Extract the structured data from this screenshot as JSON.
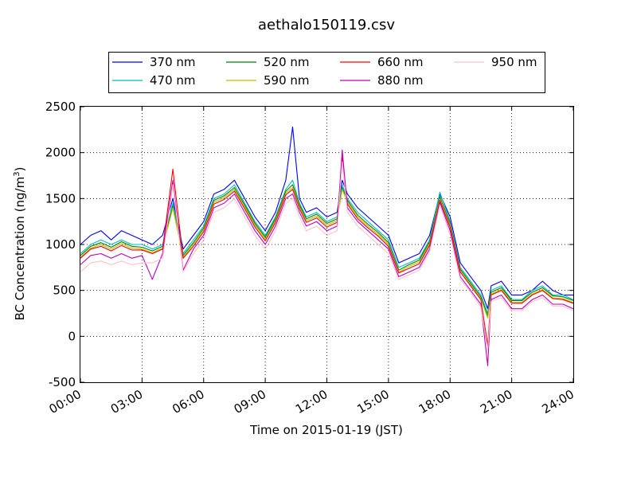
{
  "chart_data": {
    "type": "line",
    "title": "aethalo150119.csv",
    "xlabel": "Time on 2015-01-19 (JST)",
    "ylabel": "BC Concentration (ng/m",
    "ylabel_sup": "3",
    "ylabel_close": ")",
    "xlim": [
      "00:00",
      "24:00"
    ],
    "ylim": [
      -500,
      2500
    ],
    "grid": true,
    "legend_position": "top-center",
    "x_ticks": [
      "00:00",
      "03:00",
      "06:00",
      "09:00",
      "12:00",
      "15:00",
      "18:00",
      "21:00",
      "24:00"
    ],
    "y_ticks": [
      -500,
      0,
      500,
      1000,
      1500,
      2000,
      2500
    ],
    "x": [
      "00:00",
      "00:30",
      "01:00",
      "01:30",
      "02:00",
      "02:30",
      "03:00",
      "03:30",
      "04:00",
      "04:30",
      "05:00",
      "05:30",
      "06:00",
      "06:30",
      "07:00",
      "07:30",
      "08:00",
      "08:30",
      "09:00",
      "09:30",
      "10:00",
      "10:20",
      "10:40",
      "11:00",
      "11:30",
      "12:00",
      "12:30",
      "12:45",
      "13:00",
      "13:30",
      "14:00",
      "14:30",
      "15:00",
      "15:30",
      "16:00",
      "16:30",
      "17:00",
      "17:30",
      "18:00",
      "18:30",
      "19:00",
      "19:30",
      "19:50",
      "20:00",
      "20:30",
      "21:00",
      "21:30",
      "22:00",
      "22:30",
      "23:00",
      "23:30",
      "24:00"
    ],
    "series": [
      {
        "name": "370 nm",
        "color": "#0000ff",
        "values": [
          1000,
          1100,
          1150,
          1050,
          1150,
          1100,
          1050,
          1000,
          1100,
          1500,
          950,
          1100,
          1250,
          1550,
          1600,
          1700,
          1500,
          1300,
          1150,
          1350,
          1700,
          2280,
          1500,
          1350,
          1400,
          1300,
          1350,
          1700,
          1550,
          1400,
          1300,
          1200,
          1100,
          800,
          850,
          900,
          1100,
          1550,
          1300,
          800,
          650,
          500,
          300,
          550,
          600,
          450,
          450,
          500,
          600,
          500,
          450,
          450
        ]
      },
      {
        "name": "470 nm",
        "color": "#00bfbf",
        "values": [
          900,
          1000,
          1050,
          1000,
          1050,
          1000,
          1000,
          950,
          1000,
          1450,
          900,
          1050,
          1200,
          1500,
          1550,
          1650,
          1450,
          1250,
          1100,
          1300,
          1600,
          1700,
          1450,
          1300,
          1350,
          1250,
          1300,
          1650,
          1500,
          1350,
          1250,
          1150,
          1050,
          750,
          800,
          850,
          1050,
          1570,
          1250,
          750,
          600,
          450,
          250,
          500,
          550,
          400,
          400,
          500,
          550,
          450,
          450,
          400
        ]
      },
      {
        "name": "520 nm",
        "color": "#008000",
        "values": [
          880,
          980,
          1020,
          970,
          1030,
          980,
          970,
          930,
          980,
          1420,
          880,
          1020,
          1180,
          1480,
          1530,
          1620,
          1430,
          1230,
          1080,
          1280,
          1580,
          1650,
          1430,
          1280,
          1330,
          1230,
          1280,
          1620,
          1480,
          1320,
          1220,
          1130,
          1020,
          720,
          780,
          830,
          1030,
          1520,
          1230,
          730,
          580,
          430,
          220,
          480,
          530,
          390,
          390,
          480,
          530,
          440,
          430,
          390
        ]
      },
      {
        "name": "590 nm",
        "color": "#bfbf00",
        "values": [
          860,
          960,
          1000,
          950,
          1010,
          960,
          950,
          910,
          960,
          1400,
          860,
          1000,
          1160,
          1460,
          1510,
          1600,
          1410,
          1210,
          1060,
          1260,
          1560,
          1620,
          1410,
          1260,
          1310,
          1210,
          1260,
          1600,
          1460,
          1300,
          1200,
          1110,
          1000,
          700,
          760,
          810,
          1010,
          1500,
          1210,
          710,
          560,
          410,
          200,
          460,
          510,
          370,
          370,
          460,
          510,
          420,
          410,
          370
        ]
      },
      {
        "name": "660 nm",
        "color": "#ff0000",
        "values": [
          850,
          950,
          980,
          930,
          990,
          940,
          940,
          900,
          950,
          1820,
          850,
          980,
          1140,
          1440,
          1490,
          1580,
          1390,
          1190,
          1040,
          1240,
          1540,
          1600,
          1390,
          1240,
          1290,
          1190,
          1240,
          1950,
          1440,
          1280,
          1180,
          1090,
          980,
          690,
          740,
          790,
          990,
          1480,
          1190,
          700,
          550,
          400,
          -100,
          450,
          500,
          360,
          360,
          450,
          500,
          410,
          400,
          360
        ]
      },
      {
        "name": "880 nm",
        "color": "#bf00bf",
        "values": [
          780,
          880,
          900,
          850,
          900,
          850,
          880,
          620,
          900,
          1700,
          720,
          950,
          1100,
          1400,
          1450,
          1550,
          1350,
          1150,
          1000,
          1200,
          1500,
          1550,
          1350,
          1200,
          1250,
          1150,
          1200,
          2030,
          1400,
          1250,
          1150,
          1050,
          950,
          650,
          700,
          750,
          950,
          1460,
          1150,
          650,
          500,
          350,
          -320,
          400,
          450,
          300,
          300,
          400,
          450,
          350,
          350,
          300
        ]
      },
      {
        "name": "950 nm",
        "color": "#ffc0cb",
        "values": [
          700,
          800,
          820,
          780,
          820,
          780,
          800,
          800,
          850,
          1650,
          700,
          900,
          1050,
          1350,
          1400,
          1500,
          1300,
          1100,
          950,
          1150,
          1450,
          1500,
          1300,
          1150,
          1200,
          1100,
          1150,
          1900,
          1350,
          1200,
          1100,
          1000,
          900,
          620,
          670,
          720,
          920,
          1430,
          1100,
          620,
          480,
          320,
          -150,
          380,
          420,
          280,
          280,
          380,
          420,
          330,
          330,
          280
        ]
      }
    ]
  }
}
